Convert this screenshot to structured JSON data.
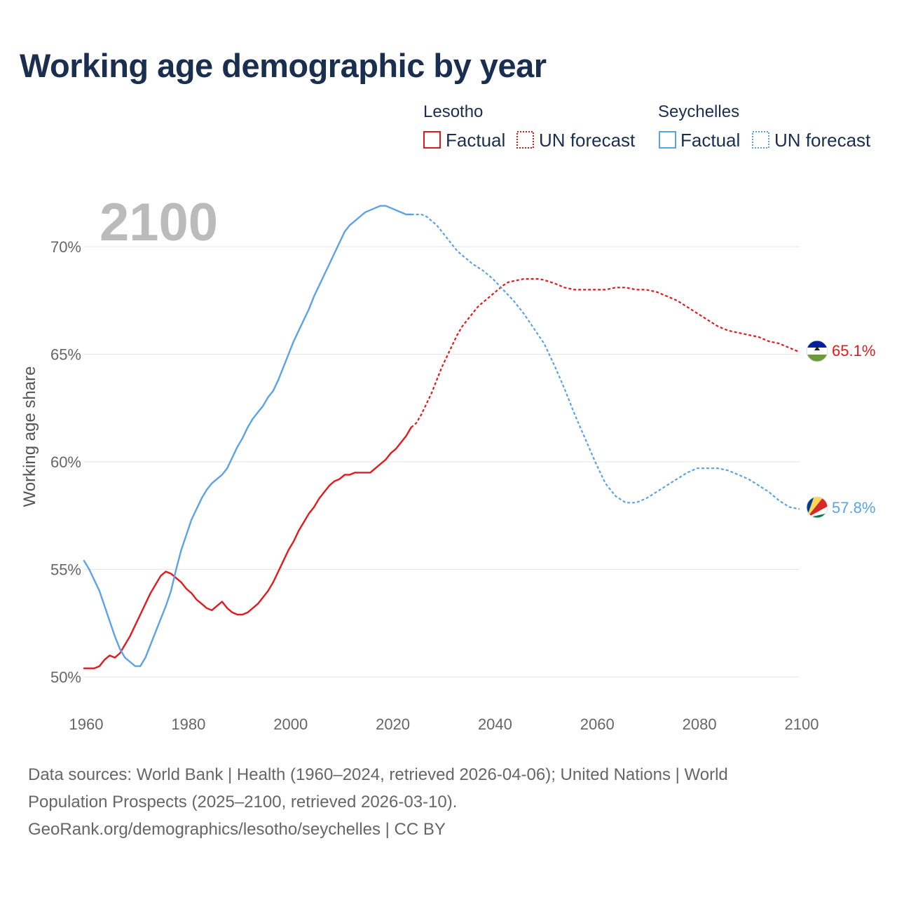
{
  "chart_data": {
    "type": "line",
    "title": "Working age demographic by year",
    "ylabel": "Working age share",
    "xlabel": "",
    "xlim": [
      1960,
      2100
    ],
    "ylim": [
      50,
      72
    ],
    "x_ticks": [
      "1960",
      "1980",
      "2000",
      "2020",
      "2040",
      "2060",
      "2080",
      "2100"
    ],
    "y_ticks": [
      "50%",
      "55%",
      "60%",
      "65%",
      "70%"
    ],
    "current_year": "2100",
    "legend": {
      "groups": [
        {
          "title": "Lesotho",
          "items": [
            "Factual",
            "UN forecast"
          ],
          "color": "#e31a1c",
          "color_forecast": "#d7191c"
        },
        {
          "title": "Seychelles",
          "items": [
            "Factual",
            "UN forecast"
          ],
          "color": "#5ba3e6",
          "color_forecast": "#5aa5c8"
        }
      ]
    },
    "series": [
      {
        "name": "Lesotho",
        "color": "#e31a1c",
        "end_label": "65.1%",
        "factual": {
          "x": [
            1960,
            1962,
            1963,
            1964,
            1965,
            1966,
            1967,
            1968,
            1969,
            1970,
            1971,
            1972,
            1973,
            1974,
            1975,
            1976,
            1977,
            1978,
            1979,
            1980,
            1981,
            1982,
            1983,
            1984,
            1985,
            1986,
            1987,
            1988,
            1989,
            1990,
            1991,
            1992,
            1993,
            1994,
            1995,
            1996,
            1997,
            1998,
            1999,
            2000,
            2001,
            2002,
            2003,
            2004,
            2005,
            2006,
            2007,
            2008,
            2009,
            2010,
            2011,
            2012,
            2013,
            2014,
            2015,
            2016,
            2017,
            2018,
            2019,
            2020,
            2021,
            2022,
            2023,
            2024
          ],
          "y": [
            50.4,
            50.4,
            50.5,
            50.8,
            51.0,
            50.9,
            51.1,
            51.5,
            51.9,
            52.4,
            52.9,
            53.4,
            53.9,
            54.3,
            54.7,
            54.9,
            54.8,
            54.6,
            54.4,
            54.1,
            53.9,
            53.6,
            53.4,
            53.2,
            53.1,
            53.3,
            53.5,
            53.2,
            53.0,
            52.9,
            52.9,
            53.0,
            53.2,
            53.4,
            53.7,
            54.0,
            54.4,
            54.9,
            55.4,
            55.9,
            56.3,
            56.8,
            57.2,
            57.6,
            57.9,
            58.3,
            58.6,
            58.9,
            59.1,
            59.2,
            59.4,
            59.4,
            59.5,
            59.5,
            59.5,
            59.5,
            59.7,
            59.9,
            60.1,
            60.4,
            60.6,
            60.9,
            61.2,
            61.6
          ]
        },
        "forecast": {
          "x": [
            2024,
            2025,
            2026,
            2027,
            2028,
            2029,
            2030,
            2031,
            2032,
            2033,
            2034,
            2035,
            2036,
            2037,
            2038,
            2039,
            2040,
            2041,
            2042,
            2043,
            2044,
            2045,
            2046,
            2047,
            2048,
            2049,
            2050,
            2052,
            2054,
            2056,
            2058,
            2060,
            2062,
            2064,
            2066,
            2068,
            2070,
            2072,
            2074,
            2076,
            2078,
            2080,
            2082,
            2084,
            2086,
            2088,
            2090,
            2092,
            2094,
            2096,
            2098,
            2100
          ],
          "y": [
            61.6,
            61.8,
            62.2,
            62.7,
            63.2,
            63.8,
            64.4,
            64.9,
            65.4,
            65.9,
            66.3,
            66.6,
            66.9,
            67.2,
            67.4,
            67.6,
            67.8,
            68.0,
            68.2,
            68.35,
            68.4,
            68.45,
            68.5,
            68.5,
            68.5,
            68.5,
            68.45,
            68.3,
            68.1,
            68.0,
            68.0,
            68.0,
            68.0,
            68.1,
            68.1,
            68.0,
            68.0,
            67.9,
            67.7,
            67.5,
            67.2,
            66.9,
            66.6,
            66.3,
            66.1,
            66.0,
            65.9,
            65.8,
            65.6,
            65.5,
            65.3,
            65.1
          ]
        }
      },
      {
        "name": "Seychelles",
        "color": "#5ba3e6",
        "end_label": "57.8%",
        "factual": {
          "x": [
            1960,
            1961,
            1962,
            1963,
            1964,
            1965,
            1966,
            1967,
            1968,
            1969,
            1970,
            1971,
            1972,
            1973,
            1974,
            1975,
            1976,
            1977,
            1978,
            1979,
            1980,
            1981,
            1982,
            1983,
            1984,
            1985,
            1986,
            1987,
            1988,
            1989,
            1990,
            1991,
            1992,
            1993,
            1994,
            1995,
            1996,
            1997,
            1998,
            1999,
            2000,
            2001,
            2002,
            2003,
            2004,
            2005,
            2006,
            2007,
            2008,
            2009,
            2010,
            2011,
            2012,
            2013,
            2014,
            2015,
            2016,
            2017,
            2018,
            2019,
            2020,
            2021,
            2022,
            2023,
            2024
          ],
          "y": [
            55.4,
            55.0,
            54.5,
            54.0,
            53.3,
            52.6,
            51.9,
            51.3,
            50.9,
            50.7,
            50.5,
            50.5,
            50.9,
            51.5,
            52.1,
            52.7,
            53.3,
            54.0,
            55.0,
            55.9,
            56.6,
            57.3,
            57.8,
            58.3,
            58.7,
            59.0,
            59.2,
            59.4,
            59.7,
            60.2,
            60.7,
            61.1,
            61.6,
            62.0,
            62.3,
            62.6,
            63.0,
            63.3,
            63.8,
            64.4,
            65.0,
            65.6,
            66.1,
            66.6,
            67.1,
            67.7,
            68.2,
            68.7,
            69.2,
            69.7,
            70.2,
            70.7,
            71.0,
            71.2,
            71.4,
            71.6,
            71.7,
            71.8,
            71.9,
            71.9,
            71.8,
            71.7,
            71.6,
            71.5,
            71.5
          ]
        },
        "forecast": {
          "x": [
            2024,
            2025,
            2026,
            2027,
            2028,
            2029,
            2030,
            2031,
            2032,
            2033,
            2034,
            2035,
            2036,
            2038,
            2040,
            2042,
            2044,
            2046,
            2048,
            2050,
            2052,
            2054,
            2056,
            2058,
            2060,
            2062,
            2064,
            2066,
            2068,
            2070,
            2072,
            2074,
            2076,
            2078,
            2080,
            2082,
            2084,
            2086,
            2088,
            2090,
            2092,
            2094,
            2096,
            2098,
            2100
          ],
          "y": [
            71.5,
            71.5,
            71.5,
            71.4,
            71.2,
            71.0,
            70.7,
            70.4,
            70.1,
            69.8,
            69.6,
            69.4,
            69.2,
            68.9,
            68.5,
            68.0,
            67.5,
            66.9,
            66.2,
            65.5,
            64.5,
            63.4,
            62.2,
            61.1,
            60.0,
            59.0,
            58.4,
            58.1,
            58.1,
            58.3,
            58.6,
            58.9,
            59.2,
            59.5,
            59.7,
            59.7,
            59.7,
            59.6,
            59.4,
            59.2,
            58.9,
            58.6,
            58.2,
            57.9,
            57.8
          ]
        }
      }
    ]
  },
  "footer": {
    "line1": "Data sources: World Bank | Health (1960–2024, retrieved 2026-04-06); United Nations | World",
    "line2": "Population Prospects (2025–2100, retrieved 2026-03-10).",
    "line3": "GeoRank.org/demographics/lesotho/seychelles | CC BY"
  }
}
